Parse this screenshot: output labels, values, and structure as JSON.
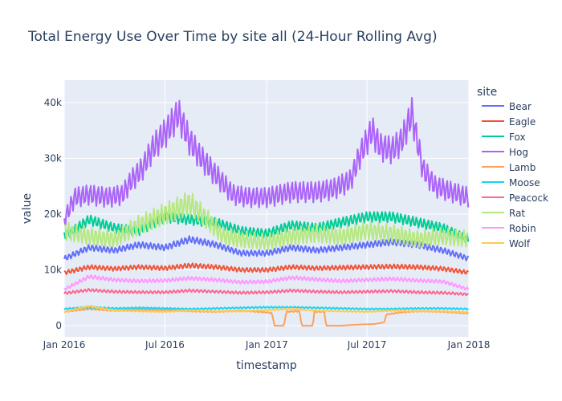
{
  "chart_data": {
    "type": "line",
    "title": "Total Energy Use Over Time by site all (24-Hour Rolling Avg)",
    "xlabel": "timestamp",
    "ylabel": "value",
    "x_range": [
      "2016-01-01",
      "2018-01-01"
    ],
    "ylim": [
      -2000,
      44000
    ],
    "x_ticks": [
      {
        "value": "2016-01-01",
        "label": "Jan 2016"
      },
      {
        "value": "2016-07-01",
        "label": "Jul 2016"
      },
      {
        "value": "2017-01-01",
        "label": "Jan 2017"
      },
      {
        "value": "2017-07-01",
        "label": "Jul 2017"
      },
      {
        "value": "2018-01-01",
        "label": "Jan 2018"
      }
    ],
    "y_ticks": [
      {
        "value": 0,
        "label": "0"
      },
      {
        "value": 10000,
        "label": "10k"
      },
      {
        "value": 20000,
        "label": "20k"
      },
      {
        "value": 30000,
        "label": "30k"
      },
      {
        "value": 40000,
        "label": "40k"
      }
    ],
    "legend_title": "site",
    "legend_position": "right",
    "grid": true,
    "plot_background": "#e5ecf6",
    "series": [
      {
        "name": "Bear",
        "color": "#636efa",
        "points": [
          [
            "2016-01-01",
            12000
          ],
          [
            "2016-02-15",
            14000
          ],
          [
            "2016-04-01",
            13500
          ],
          [
            "2016-05-15",
            14500
          ],
          [
            "2016-07-01",
            14000
          ],
          [
            "2016-08-15",
            15500
          ],
          [
            "2016-10-01",
            14500
          ],
          [
            "2016-11-15",
            13000
          ],
          [
            "2017-01-01",
            13000
          ],
          [
            "2017-02-15",
            14000
          ],
          [
            "2017-04-01",
            13500
          ],
          [
            "2017-05-15",
            14000
          ],
          [
            "2017-07-01",
            14500
          ],
          [
            "2017-08-15",
            15000
          ],
          [
            "2017-10-01",
            14500
          ],
          [
            "2017-11-15",
            13500
          ],
          [
            "2018-01-01",
            12000
          ]
        ]
      },
      {
        "name": "Eagle",
        "color": "#ef553b",
        "points": [
          [
            "2016-01-01",
            9500
          ],
          [
            "2016-02-15",
            10500
          ],
          [
            "2016-04-01",
            10200
          ],
          [
            "2016-05-15",
            10500
          ],
          [
            "2016-07-01",
            10300
          ],
          [
            "2016-08-15",
            10800
          ],
          [
            "2016-10-01",
            10500
          ],
          [
            "2016-11-15",
            10000
          ],
          [
            "2017-01-01",
            10000
          ],
          [
            "2017-02-15",
            10500
          ],
          [
            "2017-04-01",
            10300
          ],
          [
            "2017-05-15",
            10400
          ],
          [
            "2017-07-01",
            10500
          ],
          [
            "2017-08-15",
            10600
          ],
          [
            "2017-10-01",
            10500
          ],
          [
            "2017-11-15",
            10200
          ],
          [
            "2018-01-01",
            9500
          ]
        ]
      },
      {
        "name": "Fox",
        "color": "#00cc96",
        "points": [
          [
            "2016-01-01",
            16000
          ],
          [
            "2016-02-15",
            19000
          ],
          [
            "2016-04-01",
            17500
          ],
          [
            "2016-05-15",
            17000
          ],
          [
            "2016-07-01",
            19500
          ],
          [
            "2016-08-15",
            19000
          ],
          [
            "2016-10-01",
            18500
          ],
          [
            "2016-11-15",
            17000
          ],
          [
            "2017-01-01",
            16500
          ],
          [
            "2017-02-15",
            18000
          ],
          [
            "2017-04-01",
            17500
          ],
          [
            "2017-05-15",
            18500
          ],
          [
            "2017-07-01",
            19500
          ],
          [
            "2017-08-15",
            19500
          ],
          [
            "2017-10-01",
            18500
          ],
          [
            "2017-11-15",
            17500
          ],
          [
            "2018-01-01",
            15500
          ]
        ]
      },
      {
        "name": "Hog",
        "color": "#ab63fa",
        "points": [
          [
            "2016-01-01",
            19000
          ],
          [
            "2016-01-20",
            23000
          ],
          [
            "2016-02-15",
            23500
          ],
          [
            "2016-03-20",
            23000
          ],
          [
            "2016-04-15",
            23500
          ],
          [
            "2016-05-01",
            26000
          ],
          [
            "2016-05-20",
            28000
          ],
          [
            "2016-06-10",
            32000
          ],
          [
            "2016-07-05",
            35000
          ],
          [
            "2016-07-25",
            38000
          ],
          [
            "2016-08-15",
            33000
          ],
          [
            "2016-09-05",
            30000
          ],
          [
            "2016-10-01",
            27000
          ],
          [
            "2016-11-01",
            23500
          ],
          [
            "2016-12-01",
            23000
          ],
          [
            "2017-01-01",
            23000
          ],
          [
            "2017-02-15",
            24000
          ],
          [
            "2017-04-01",
            24000
          ],
          [
            "2017-05-01",
            24500
          ],
          [
            "2017-06-01",
            26000
          ],
          [
            "2017-06-20",
            31000
          ],
          [
            "2017-07-10",
            35000
          ],
          [
            "2017-07-25",
            32000
          ],
          [
            "2017-08-15",
            31500
          ],
          [
            "2017-09-01",
            33000
          ],
          [
            "2017-09-20",
            38000
          ],
          [
            "2017-10-10",
            28000
          ],
          [
            "2017-11-01",
            25000
          ],
          [
            "2017-12-01",
            24000
          ],
          [
            "2018-01-01",
            23000
          ]
        ]
      },
      {
        "name": "Lamb",
        "color": "#ffa15a",
        "points": [
          [
            "2016-01-01",
            2500
          ],
          [
            "2016-02-15",
            3000
          ],
          [
            "2016-04-01",
            2700
          ],
          [
            "2016-05-15",
            2900
          ],
          [
            "2016-07-01",
            2800
          ],
          [
            "2016-08-15",
            2600
          ],
          [
            "2016-10-01",
            2500
          ],
          [
            "2016-11-15",
            2700
          ],
          [
            "2016-12-15",
            2500
          ],
          [
            "2017-01-10",
            2300
          ],
          [
            "2017-01-15",
            0
          ],
          [
            "2017-02-01",
            0
          ],
          [
            "2017-02-05",
            2500
          ],
          [
            "2017-03-01",
            2600
          ],
          [
            "2017-03-05",
            0
          ],
          [
            "2017-03-25",
            0
          ],
          [
            "2017-03-28",
            2500
          ],
          [
            "2017-04-15",
            2500
          ],
          [
            "2017-04-18",
            0
          ],
          [
            "2017-05-15",
            0
          ],
          [
            "2017-06-15",
            200
          ],
          [
            "2017-07-15",
            300
          ],
          [
            "2017-08-01",
            600
          ],
          [
            "2017-08-05",
            2000
          ],
          [
            "2017-09-01",
            2400
          ],
          [
            "2017-10-01",
            2600
          ],
          [
            "2017-11-15",
            2500
          ],
          [
            "2018-01-01",
            2200
          ]
        ]
      },
      {
        "name": "Moose",
        "color": "#19d3f3",
        "points": [
          [
            "2016-01-01",
            3000
          ],
          [
            "2016-02-15",
            3300
          ],
          [
            "2016-04-01",
            3100
          ],
          [
            "2016-05-15",
            3200
          ],
          [
            "2016-07-01",
            3100
          ],
          [
            "2016-08-15",
            3000
          ],
          [
            "2016-10-01",
            3100
          ],
          [
            "2016-11-15",
            3200
          ],
          [
            "2017-01-01",
            3300
          ],
          [
            "2017-02-15",
            3300
          ],
          [
            "2017-04-01",
            3200
          ],
          [
            "2017-05-15",
            3100
          ],
          [
            "2017-07-01",
            3000
          ],
          [
            "2017-08-15",
            3000
          ],
          [
            "2017-10-01",
            3100
          ],
          [
            "2017-11-15",
            3100
          ],
          [
            "2018-01-01",
            3000
          ]
        ]
      },
      {
        "name": "Peacock",
        "color": "#ff6692",
        "points": [
          [
            "2016-01-01",
            5800
          ],
          [
            "2016-02-15",
            6400
          ],
          [
            "2016-04-01",
            6100
          ],
          [
            "2016-05-15",
            6000
          ],
          [
            "2016-07-01",
            6000
          ],
          [
            "2016-08-15",
            6300
          ],
          [
            "2016-10-01",
            6100
          ],
          [
            "2016-11-15",
            5900
          ],
          [
            "2017-01-01",
            6000
          ],
          [
            "2017-02-15",
            6300
          ],
          [
            "2017-04-01",
            6100
          ],
          [
            "2017-05-15",
            6000
          ],
          [
            "2017-07-01",
            6100
          ],
          [
            "2017-08-15",
            6200
          ],
          [
            "2017-10-01",
            6000
          ],
          [
            "2017-11-15",
            5900
          ],
          [
            "2018-01-01",
            5600
          ]
        ]
      },
      {
        "name": "Rat",
        "color": "#b6e880",
        "points": [
          [
            "2016-01-01",
            17000
          ],
          [
            "2016-02-15",
            16000
          ],
          [
            "2016-04-01",
            15500
          ],
          [
            "2016-05-15",
            18000
          ],
          [
            "2016-07-01",
            20000
          ],
          [
            "2016-08-15",
            22000
          ],
          [
            "2016-09-15",
            19000
          ],
          [
            "2016-10-15",
            16000
          ],
          [
            "2016-11-15",
            15500
          ],
          [
            "2017-01-01",
            15000
          ],
          [
            "2017-02-15",
            16000
          ],
          [
            "2017-04-01",
            16500
          ],
          [
            "2017-05-15",
            16000
          ],
          [
            "2017-07-01",
            17000
          ],
          [
            "2017-08-15",
            16500
          ],
          [
            "2017-10-01",
            15500
          ],
          [
            "2017-11-15",
            16000
          ],
          [
            "2018-01-01",
            15500
          ]
        ]
      },
      {
        "name": "Robin",
        "color": "#ff97ff",
        "points": [
          [
            "2016-01-01",
            6500
          ],
          [
            "2016-02-15",
            8800
          ],
          [
            "2016-04-01",
            8200
          ],
          [
            "2016-05-15",
            8000
          ],
          [
            "2016-07-01",
            8100
          ],
          [
            "2016-08-15",
            8500
          ],
          [
            "2016-10-01",
            8200
          ],
          [
            "2016-11-15",
            7800
          ],
          [
            "2017-01-01",
            7900
          ],
          [
            "2017-02-15",
            8600
          ],
          [
            "2017-04-01",
            8300
          ],
          [
            "2017-05-15",
            8000
          ],
          [
            "2017-07-01",
            8200
          ],
          [
            "2017-08-15",
            8400
          ],
          [
            "2017-10-01",
            8100
          ],
          [
            "2017-11-15",
            7900
          ],
          [
            "2018-01-01",
            6500
          ]
        ]
      },
      {
        "name": "Wolf",
        "color": "#fecb52",
        "points": [
          [
            "2016-01-01",
            2500
          ],
          [
            "2016-02-15",
            3500
          ],
          [
            "2016-04-01",
            2700
          ],
          [
            "2016-05-15",
            2600
          ],
          [
            "2016-07-01",
            2500
          ],
          [
            "2016-08-15",
            2700
          ],
          [
            "2016-10-01",
            2600
          ],
          [
            "2016-11-15",
            2600
          ],
          [
            "2017-01-01",
            2800
          ],
          [
            "2017-02-15",
            3000
          ],
          [
            "2017-04-01",
            2700
          ],
          [
            "2017-05-15",
            2600
          ],
          [
            "2017-07-01",
            2500
          ],
          [
            "2017-08-15",
            2700
          ],
          [
            "2017-10-01",
            2600
          ],
          [
            "2017-11-15",
            2600
          ],
          [
            "2018-01-01",
            2400
          ]
        ]
      }
    ]
  }
}
